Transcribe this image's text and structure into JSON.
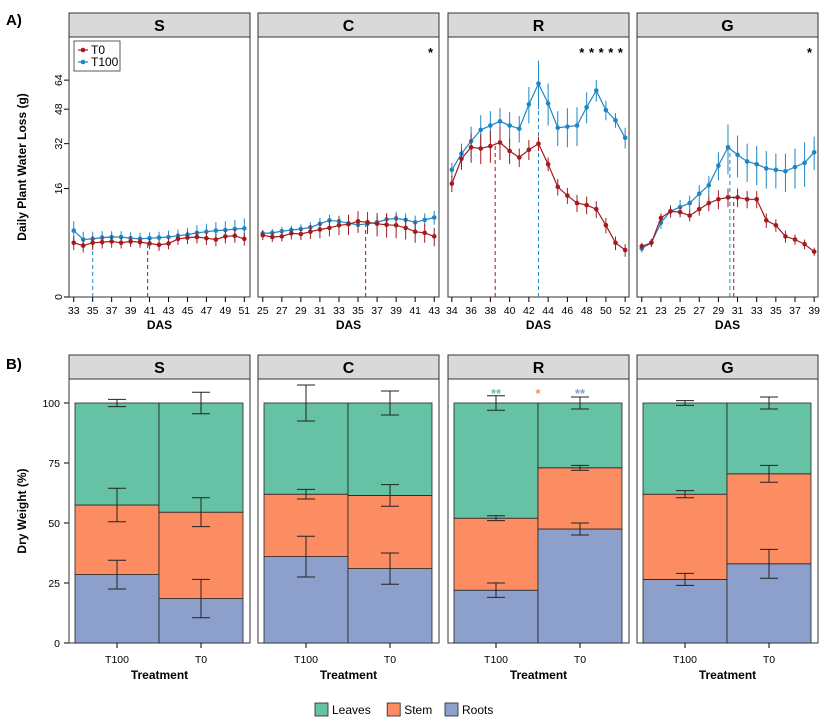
{
  "panel_a_label": "A)",
  "panel_b_label": "B)",
  "chart_data": [
    {
      "type": "line",
      "ylabel": "Daily Plant Water Loss (g)",
      "xlabel": "DAS",
      "y_scale": "sqrt",
      "ylim": [
        0,
        92
      ],
      "yticks": [
        0,
        16,
        32,
        48,
        64
      ],
      "legend": {
        "placement": "top-left",
        "entries": [
          "T0",
          "T100"
        ]
      },
      "series_colors": {
        "T0": "#a31a1f",
        "T100": "#1f86c4"
      },
      "panels": [
        {
          "title": "S",
          "xlim": [
            32.5,
            51.6
          ],
          "xticks": [
            33,
            35,
            37,
            39,
            41,
            43,
            45,
            47,
            49,
            51
          ],
          "stars": "",
          "vlines": {
            "T0": 40.8,
            "T100": 35.0
          },
          "series": [
            {
              "name": "T0",
              "x": [
                33,
                34,
                35,
                36,
                37,
                38,
                39,
                40,
                41,
                42,
                43,
                44,
                45,
                46,
                47,
                48,
                49,
                50,
                51
              ],
              "y": [
                4.0,
                3.6,
                4.0,
                4.1,
                4.2,
                4.0,
                4.2,
                4.1,
                3.9,
                3.7,
                3.9,
                4.6,
                4.8,
                4.9,
                4.7,
                4.5,
                5.0,
                5.1,
                4.6
              ],
              "err": [
                1.0,
                0.9,
                1.0,
                0.9,
                0.9,
                0.8,
                0.8,
                0.8,
                0.8,
                0.8,
                0.8,
                0.9,
                1.0,
                1.0,
                1.0,
                1.0,
                1.1,
                1.1,
                1.0
              ]
            },
            {
              "name": "T100",
              "x": [
                33,
                34,
                35,
                36,
                37,
                38,
                39,
                40,
                41,
                42,
                43,
                44,
                45,
                46,
                47,
                48,
                49,
                50,
                51
              ],
              "y": [
                6.0,
                4.5,
                4.6,
                4.8,
                4.9,
                4.9,
                4.7,
                4.6,
                4.7,
                4.8,
                4.9,
                5.1,
                5.3,
                5.6,
                5.8,
                6.0,
                6.1,
                6.3,
                6.4
              ],
              "err": [
                1.8,
                1.3,
                1.2,
                1.1,
                1.0,
                1.0,
                1.0,
                1.0,
                1.0,
                1.0,
                1.1,
                1.1,
                1.2,
                1.4,
                1.5,
                1.6,
                1.7,
                1.8,
                2.0
              ]
            }
          ]
        },
        {
          "title": "C",
          "xlim": [
            24.5,
            43.5
          ],
          "xticks": [
            25,
            27,
            29,
            31,
            33,
            35,
            37,
            39,
            41,
            43
          ],
          "stars": "*",
          "vlines": {
            "T0": 35.8,
            "T100": null
          },
          "series": [
            {
              "name": "T0",
              "x": [
                25,
                26,
                27,
                28,
                29,
                30,
                31,
                32,
                33,
                34,
                35,
                36,
                37,
                38,
                39,
                40,
                41,
                42,
                43
              ],
              "y": [
                5.2,
                4.9,
                5.0,
                5.5,
                5.4,
                5.8,
                6.2,
                6.5,
                7.0,
                7.2,
                7.8,
                7.6,
                7.3,
                7.1,
                7.0,
                6.5,
                5.8,
                5.6,
                5.0
              ],
              "err": [
                0.8,
                0.8,
                0.8,
                1.0,
                1.0,
                1.2,
                1.5,
                1.5,
                1.8,
                2.0,
                2.2,
                2.2,
                2.3,
                2.3,
                2.3,
                2.0,
                1.8,
                1.6,
                1.5
              ]
            },
            {
              "name": "T100",
              "x": [
                25,
                26,
                27,
                28,
                29,
                30,
                31,
                32,
                33,
                34,
                35,
                36,
                37,
                38,
                39,
                40,
                41,
                42,
                43
              ],
              "y": [
                5.5,
                5.6,
                5.9,
                6.1,
                6.3,
                6.6,
                7.3,
                8.0,
                7.8,
                7.4,
                7.1,
                7.3,
                7.6,
                8.2,
                8.4,
                8.1,
                7.6,
                8.1,
                8.6
              ],
              "err": [
                0.6,
                0.7,
                0.8,
                0.8,
                0.9,
                1.0,
                1.2,
                1.2,
                1.2,
                1.1,
                1.1,
                1.2,
                1.3,
                1.4,
                1.5,
                1.4,
                1.4,
                1.4,
                1.5
              ]
            }
          ]
        },
        {
          "title": "R",
          "xlim": [
            33.6,
            52.4
          ],
          "xticks": [
            34,
            36,
            38,
            40,
            42,
            44,
            46,
            48,
            50,
            52
          ],
          "stars": "*****",
          "vlines": {
            "T0": 38.5,
            "T100": 43.0
          },
          "series": [
            {
              "name": "T0",
              "x": [
                34,
                35,
                36,
                37,
                38,
                39,
                40,
                41,
                42,
                43,
                44,
                45,
                46,
                47,
                48,
                49,
                50,
                51,
                52
              ],
              "y": [
                17.5,
                26.0,
                30.5,
                30.0,
                31.0,
                32.5,
                29.0,
                26.5,
                29.5,
                32.0,
                24.0,
                16.5,
                14.0,
                12.0,
                11.5,
                10.5,
                7.0,
                4.0,
                3.0
              ],
              "err": [
                2.5,
                4.0,
                6.0,
                6.0,
                6.5,
                7.0,
                5.0,
                3.5,
                4.0,
                3.0,
                2.5,
                2.5,
                2.2,
                2.2,
                2.2,
                2.0,
                1.5,
                1.0,
                0.8
              ]
            },
            {
              "name": "T100",
              "x": [
                34,
                35,
                36,
                37,
                38,
                39,
                40,
                41,
                42,
                43,
                44,
                45,
                46,
                47,
                48,
                49,
                50,
                51,
                52
              ],
              "y": [
                22.0,
                28.0,
                33.0,
                38.0,
                40.0,
                42.0,
                40.0,
                38.5,
                50.5,
                62.0,
                51.0,
                39.0,
                39.5,
                40.0,
                49.0,
                58.0,
                47.5,
                42.5,
                34.5
              ],
              "err": [
                2.5,
                4.0,
                6.5,
                7.0,
                7.0,
                6.5,
                6.5,
                6.0,
                9.5,
                14.0,
                11.0,
                8.0,
                9.0,
                9.0,
                8.0,
                6.0,
                5.0,
                3.5,
                4.5
              ]
            }
          ]
        },
        {
          "title": "G",
          "xlim": [
            20.5,
            39.4
          ],
          "xticks": [
            21,
            23,
            25,
            27,
            29,
            31,
            33,
            35,
            37,
            39
          ],
          "stars": "*",
          "vlines": {
            "T0": 30.6,
            "T100": 30.2
          },
          "series": [
            {
              "name": "T0",
              "x": [
                21,
                22,
                23,
                24,
                25,
                26,
                27,
                28,
                29,
                30,
                31,
                32,
                33,
                34,
                35,
                36,
                37,
                38,
                39
              ],
              "y": [
                3.5,
                4.0,
                8.5,
                10.0,
                9.8,
                9.0,
                10.5,
                12.0,
                13.0,
                13.5,
                13.5,
                13.0,
                13.0,
                8.0,
                7.0,
                5.0,
                4.5,
                3.8,
                2.8
              ],
              "err": [
                0.5,
                0.6,
                1.0,
                1.2,
                1.2,
                1.2,
                1.5,
                2.0,
                2.5,
                2.5,
                2.5,
                2.3,
                2.3,
                1.5,
                1.2,
                1.0,
                0.8,
                0.7,
                0.5
              ]
            },
            {
              "name": "T100",
              "x": [
                21,
                22,
                23,
                24,
                25,
                26,
                27,
                28,
                29,
                30,
                31,
                32,
                33,
                34,
                35,
                36,
                37,
                38,
                39
              ],
              "y": [
                3.2,
                4.0,
                7.5,
                10.0,
                11.0,
                12.0,
                14.5,
                17.0,
                23.5,
                30.5,
                27.5,
                25.0,
                24.0,
                22.5,
                22.0,
                21.5,
                23.0,
                24.5,
                28.5
              ],
              "err": [
                0.5,
                0.6,
                1.2,
                1.5,
                1.8,
                2.0,
                2.5,
                3.0,
                5.0,
                10.0,
                8.0,
                7.0,
                7.0,
                6.5,
                6.0,
                6.5,
                7.0,
                8.0,
                6.5
              ]
            }
          ]
        }
      ]
    },
    {
      "type": "bar",
      "stacked": true,
      "ylabel": "Dry Weight (%)",
      "xlabel": "Treatment",
      "ylim": [
        0,
        110
      ],
      "yticks": [
        0,
        25,
        50,
        75,
        100
      ],
      "categories": [
        "T100",
        "T0"
      ],
      "legend": {
        "placement": "bottom",
        "entries": [
          {
            "name": "Leaves",
            "color": "#66c2a5"
          },
          {
            "name": "Stem",
            "color": "#fc8d62"
          },
          {
            "name": "Roots",
            "color": "#8da0cb"
          }
        ]
      },
      "panels": [
        {
          "title": "S",
          "stars": [],
          "series": [
            {
              "name": "Roots",
              "values": [
                28.5,
                18.5
              ],
              "err": [
                6.0,
                8.0
              ]
            },
            {
              "name": "Stem",
              "values": [
                29.0,
                36.0
              ],
              "err": [
                7.0,
                6.0
              ]
            },
            {
              "name": "Leaves",
              "values": [
                42.5,
                45.5
              ],
              "err": [
                1.5,
                4.5
              ]
            }
          ]
        },
        {
          "title": "C",
          "stars": [],
          "series": [
            {
              "name": "Roots",
              "values": [
                36.0,
                31.0
              ],
              "err": [
                8.5,
                6.5
              ]
            },
            {
              "name": "Stem",
              "values": [
                26.0,
                30.5
              ],
              "err": [
                2.0,
                4.5
              ]
            },
            {
              "name": "Leaves",
              "values": [
                38.0,
                38.5
              ],
              "err": [
                7.5,
                5.0
              ]
            }
          ]
        },
        {
          "title": "R",
          "stars": [
            {
              "text": "**",
              "x": 0,
              "series": "Leaves"
            },
            {
              "text": "*",
              "x": 0.5,
              "series": "Stem"
            },
            {
              "text": "**",
              "x": 1,
              "series": "Roots"
            }
          ],
          "series": [
            {
              "name": "Roots",
              "values": [
                22.0,
                47.5
              ],
              "err": [
                3.0,
                2.5
              ]
            },
            {
              "name": "Stem",
              "values": [
                30.0,
                25.5
              ],
              "err": [
                1.0,
                1.0
              ]
            },
            {
              "name": "Leaves",
              "values": [
                48.0,
                27.0
              ],
              "err": [
                3.0,
                2.5
              ]
            }
          ]
        },
        {
          "title": "G",
          "stars": [],
          "series": [
            {
              "name": "Roots",
              "values": [
                26.5,
                33.0
              ],
              "err": [
                2.5,
                6.0
              ]
            },
            {
              "name": "Stem",
              "values": [
                35.5,
                37.5
              ],
              "err": [
                1.5,
                3.5
              ]
            },
            {
              "name": "Leaves",
              "values": [
                38.0,
                29.5
              ],
              "err": [
                1.0,
                2.5
              ]
            }
          ]
        }
      ]
    }
  ]
}
